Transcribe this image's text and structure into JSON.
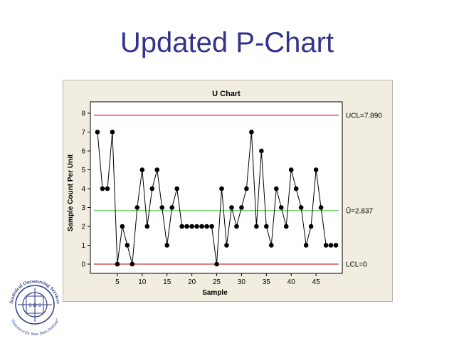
{
  "slide": {
    "title": "Updated P-Chart"
  },
  "logo": {
    "top_text": "Statistical Outsourcing Services",
    "bottom_text": "\"Outsource for Your Data Analysis\"",
    "center_text": "S O S"
  },
  "colors": {
    "title": "#33338f",
    "limit_line": "#c00000",
    "center_line": "#2fb52f",
    "panel": "#f1ede1"
  },
  "chart_data": {
    "type": "line",
    "title": "U Chart",
    "xlabel": "Sample",
    "ylabel": "Sample Count Per Unit",
    "x_ticks": [
      5,
      10,
      15,
      20,
      25,
      30,
      35,
      40,
      45
    ],
    "y_ticks": [
      0,
      1,
      2,
      3,
      4,
      5,
      6,
      7,
      8
    ],
    "xlim": [
      0,
      49
    ],
    "ylim": [
      0,
      8
    ],
    "grid": false,
    "x": [
      1,
      2,
      3,
      4,
      5,
      6,
      7,
      8,
      9,
      10,
      11,
      12,
      13,
      14,
      15,
      16,
      17,
      18,
      19,
      20,
      21,
      22,
      23,
      24,
      25,
      26,
      27,
      28,
      29,
      30,
      31,
      32,
      33,
      34,
      35,
      36,
      37,
      38,
      39,
      40,
      41,
      42,
      43,
      44,
      45,
      46,
      47,
      48,
      49
    ],
    "values": [
      7,
      4,
      4,
      7,
      0,
      2,
      1,
      0,
      3,
      5,
      2,
      4,
      5,
      3,
      1,
      3,
      4,
      2,
      2,
      2,
      2,
      2,
      2,
      2,
      0,
      4,
      1,
      3,
      2,
      3,
      4,
      7,
      2,
      6,
      2,
      1,
      4,
      3,
      2,
      5,
      4,
      3,
      1,
      2,
      5,
      3,
      1,
      1,
      1
    ],
    "control_limits": [
      {
        "name": "UCL",
        "value": 7.89,
        "label": "UCL=7.890"
      },
      {
        "name": "center",
        "value": 2.837,
        "label": "Ū=2.837"
      },
      {
        "name": "LCL",
        "value": 0,
        "label": "LCL=0"
      }
    ]
  }
}
